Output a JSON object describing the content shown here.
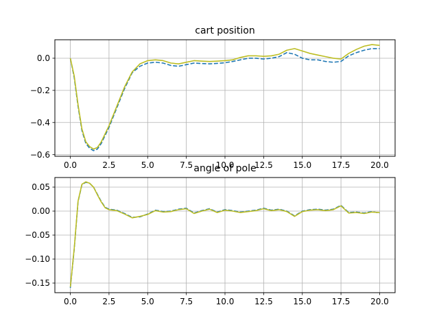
{
  "chart_data": [
    {
      "type": "line",
      "title": "cart position",
      "xlabel": "",
      "ylabel": "",
      "xlim": [
        -1.0,
        21.0
      ],
      "ylim": [
        -0.61,
        0.115
      ],
      "xticks": [
        0.0,
        2.5,
        5.0,
        7.5,
        10.0,
        12.5,
        15.0,
        17.5,
        20.0
      ],
      "xtick_labels": [
        "0.0",
        "2.5",
        "5.0",
        "7.5",
        "10.0",
        "12.5",
        "15.0",
        "17.5",
        "20.0"
      ],
      "yticks": [
        0.0,
        -0.2,
        -0.4,
        -0.6
      ],
      "ytick_labels": [
        "0.0",
        "−0.2",
        "−0.4",
        "−0.6"
      ],
      "grid": true,
      "series": [
        {
          "color": "#1f77b4",
          "style": "dashed",
          "x": [
            0.0,
            0.25,
            0.5,
            0.75,
            1.0,
            1.25,
            1.5,
            1.75,
            2.0,
            2.5,
            3.0,
            3.5,
            4.0,
            4.5,
            5.0,
            5.5,
            6.0,
            6.5,
            7.0,
            7.5,
            8.0,
            8.5,
            9.0,
            9.5,
            10.0,
            10.5,
            11.0,
            11.5,
            12.0,
            12.5,
            13.0,
            13.5,
            14.0,
            14.5,
            15.0,
            15.5,
            16.0,
            16.5,
            17.0,
            17.5,
            18.0,
            18.5,
            19.0,
            19.5,
            20.0
          ],
          "y": [
            0.0,
            -0.12,
            -0.3,
            -0.45,
            -0.53,
            -0.56,
            -0.575,
            -0.565,
            -0.53,
            -0.43,
            -0.31,
            -0.19,
            -0.09,
            -0.05,
            -0.03,
            -0.025,
            -0.03,
            -0.045,
            -0.05,
            -0.04,
            -0.03,
            -0.033,
            -0.035,
            -0.032,
            -0.028,
            -0.02,
            -0.01,
            0.0,
            0.0,
            -0.005,
            0.0,
            0.01,
            0.035,
            0.025,
            0.0,
            -0.01,
            -0.01,
            -0.02,
            -0.025,
            -0.02,
            0.015,
            0.035,
            0.05,
            0.06,
            0.06
          ]
        },
        {
          "color": "#bcbd22",
          "style": "solid",
          "x": [
            0.0,
            0.25,
            0.5,
            0.75,
            1.0,
            1.25,
            1.5,
            1.75,
            2.0,
            2.5,
            3.0,
            3.5,
            4.0,
            4.5,
            5.0,
            5.5,
            6.0,
            6.5,
            7.0,
            7.5,
            8.0,
            8.5,
            9.0,
            9.5,
            10.0,
            10.5,
            11.0,
            11.5,
            12.0,
            12.5,
            13.0,
            13.5,
            14.0,
            14.5,
            15.0,
            15.5,
            16.0,
            16.5,
            17.0,
            17.5,
            18.0,
            18.5,
            19.0,
            19.5,
            20.0
          ],
          "y": [
            0.0,
            -0.11,
            -0.29,
            -0.44,
            -0.52,
            -0.55,
            -0.565,
            -0.555,
            -0.52,
            -0.42,
            -0.3,
            -0.18,
            -0.085,
            -0.035,
            -0.015,
            -0.01,
            -0.015,
            -0.03,
            -0.035,
            -0.025,
            -0.015,
            -0.018,
            -0.02,
            -0.018,
            -0.015,
            -0.01,
            0.005,
            0.015,
            0.015,
            0.012,
            0.015,
            0.025,
            0.05,
            0.06,
            0.045,
            0.03,
            0.02,
            0.01,
            0.0,
            -0.005,
            0.03,
            0.055,
            0.075,
            0.085,
            0.08
          ]
        }
      ]
    },
    {
      "type": "line",
      "title": "angle of pole",
      "xlabel": "",
      "ylabel": "",
      "xlim": [
        -1.0,
        21.0
      ],
      "ylim": [
        -0.17,
        0.07
      ],
      "xticks": [
        0.0,
        2.5,
        5.0,
        7.5,
        10.0,
        12.5,
        15.0,
        17.5,
        20.0
      ],
      "xtick_labels": [
        "0.0",
        "2.5",
        "5.0",
        "7.5",
        "10.0",
        "12.5",
        "15.0",
        "17.5",
        "20.0"
      ],
      "yticks": [
        0.05,
        0.0,
        -0.05,
        -0.1,
        -0.15
      ],
      "ytick_labels": [
        "0.05",
        "0.00",
        "−0.05",
        "−0.10",
        "−0.15"
      ],
      "grid": true,
      "series": [
        {
          "color": "#1f77b4",
          "style": "dashed",
          "x": [
            0.0,
            0.25,
            0.5,
            0.75,
            1.0,
            1.25,
            1.5,
            1.75,
            2.0,
            2.25,
            2.5,
            3.0,
            3.5,
            4.0,
            4.5,
            5.0,
            5.5,
            6.0,
            6.5,
            7.0,
            7.5,
            8.0,
            8.5,
            9.0,
            9.5,
            10.0,
            10.5,
            11.0,
            11.5,
            12.0,
            12.5,
            13.0,
            13.5,
            14.0,
            14.5,
            15.0,
            15.5,
            16.0,
            16.5,
            17.0,
            17.5,
            18.0,
            18.5,
            19.0,
            19.5,
            20.0
          ],
          "y": [
            -0.16,
            -0.08,
            0.02,
            0.055,
            0.06,
            0.058,
            0.05,
            0.035,
            0.02,
            0.008,
            0.004,
            0.002,
            -0.005,
            -0.013,
            -0.012,
            -0.006,
            0.002,
            -0.001,
            0.0,
            0.004,
            0.006,
            -0.004,
            0.001,
            0.005,
            -0.002,
            0.003,
            0.001,
            -0.002,
            0.0,
            0.002,
            0.006,
            0.002,
            0.004,
            0.0,
            -0.01,
            0.0,
            0.003,
            0.004,
            0.002,
            0.004,
            0.012,
            -0.003,
            -0.002,
            -0.004,
            -0.001,
            -0.004
          ]
        },
        {
          "color": "#bcbd22",
          "style": "solid",
          "x": [
            0.0,
            0.25,
            0.5,
            0.75,
            1.0,
            1.25,
            1.5,
            1.75,
            2.0,
            2.25,
            2.5,
            3.0,
            3.5,
            4.0,
            4.5,
            5.0,
            5.5,
            6.0,
            6.5,
            7.0,
            7.5,
            8.0,
            8.5,
            9.0,
            9.5,
            10.0,
            10.5,
            11.0,
            11.5,
            12.0,
            12.5,
            13.0,
            13.5,
            14.0,
            14.5,
            15.0,
            15.5,
            16.0,
            16.5,
            17.0,
            17.5,
            18.0,
            18.5,
            19.0,
            19.5,
            20.0
          ],
          "y": [
            -0.158,
            -0.078,
            0.021,
            0.056,
            0.061,
            0.058,
            0.05,
            0.034,
            0.019,
            0.007,
            0.003,
            0.001,
            -0.006,
            -0.014,
            -0.011,
            -0.007,
            0.001,
            -0.002,
            -0.001,
            0.003,
            0.005,
            -0.005,
            0.0,
            0.004,
            -0.003,
            0.002,
            0.0,
            -0.003,
            -0.001,
            0.001,
            0.005,
            0.001,
            0.003,
            -0.001,
            -0.011,
            -0.001,
            0.002,
            0.003,
            0.001,
            0.003,
            0.011,
            -0.004,
            -0.003,
            -0.005,
            -0.002,
            -0.003
          ]
        }
      ]
    }
  ]
}
